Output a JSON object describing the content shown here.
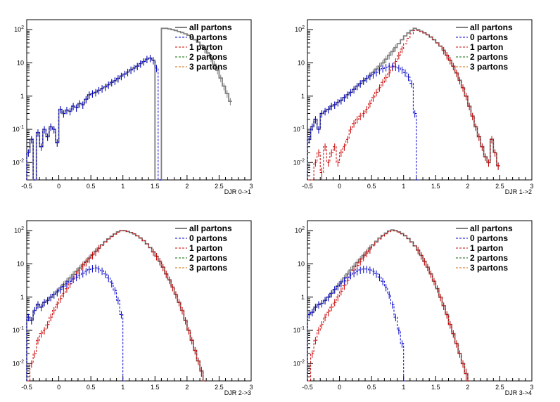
{
  "chart_data": [
    {
      "type": "histogram",
      "xlabel": "DJR 0->1",
      "xlim": [
        -0.5,
        3.0
      ],
      "ylim": [
        0.003,
        200
      ],
      "yscale": "log",
      "xticks": [
        "-0.5",
        "0",
        "0.5",
        "1",
        "1.5",
        "2",
        "2.5",
        "3"
      ],
      "yticks": [
        {
          "value": 0.01,
          "base": "10",
          "exp": "-2"
        },
        {
          "value": 0.1,
          "base": "10",
          "exp": "-1"
        },
        {
          "value": 1,
          "base": "1",
          "exp": ""
        },
        {
          "value": 10,
          "base": "10",
          "exp": ""
        },
        {
          "value": 100,
          "base": "10",
          "exp": "2"
        }
      ],
      "legend_position": "top-right",
      "legend": [
        "all partons",
        "0 partons",
        "1 parton",
        "2 partons",
        "3 partons"
      ],
      "series_colors": {
        "all": "#808080",
        "0": "#0000cc",
        "1": "#cc0000",
        "2": "#006600",
        "3": "#cc6600"
      },
      "bin_width": 0.05,
      "x_start": -0.5,
      "series": [
        {
          "name": "all partons",
          "values": [
            0.02,
            0.05,
            0.003,
            0.08,
            0.03,
            0.1,
            0.06,
            0.12,
            0.1,
            0.04,
            0.4,
            0.3,
            0.38,
            0.35,
            0.5,
            0.45,
            0.6,
            0.55,
            0.8,
            1.1,
            1.2,
            1.3,
            1.5,
            1.7,
            1.9,
            2.2,
            2.6,
            2.9,
            3.4,
            4,
            4.6,
            5.3,
            6.2,
            7,
            8,
            9.5,
            11,
            13,
            14,
            12,
            0.003,
            0.003,
            110,
            110,
            105,
            100,
            95,
            88,
            82,
            75,
            68,
            60,
            50,
            42,
            34,
            26,
            20,
            14,
            9,
            6,
            3.5,
            2,
            1.2,
            0.7
          ]
        },
        {
          "name": "0 partons",
          "values": [
            0.02,
            0.05,
            0.003,
            0.08,
            0.03,
            0.1,
            0.06,
            0.12,
            0.1,
            0.04,
            0.4,
            0.3,
            0.38,
            0.35,
            0.5,
            0.45,
            0.6,
            0.55,
            0.8,
            1.1,
            1.2,
            1.3,
            1.5,
            1.7,
            1.9,
            2.2,
            2.6,
            2.9,
            3.4,
            4,
            4.6,
            5.3,
            6.2,
            7,
            8,
            9.5,
            11,
            13,
            14,
            12,
            7,
            0.003
          ]
        },
        {
          "name": "1 parton",
          "values": []
        },
        {
          "name": "2 partons",
          "values": []
        },
        {
          "name": "3 partons",
          "values": []
        }
      ]
    },
    {
      "type": "histogram",
      "xlabel": "DJR 1->2",
      "xlim": [
        -0.5,
        3.0
      ],
      "ylim": [
        0.003,
        200
      ],
      "yscale": "log",
      "xticks": [
        "-0.5",
        "0",
        "0.5",
        "1",
        "1.5",
        "2",
        "2.5",
        "3"
      ],
      "yticks": [
        {
          "value": 0.01,
          "base": "10",
          "exp": "-2"
        },
        {
          "value": 0.1,
          "base": "10",
          "exp": "-1"
        },
        {
          "value": 1,
          "base": "1",
          "exp": ""
        },
        {
          "value": 10,
          "base": "10",
          "exp": ""
        },
        {
          "value": 100,
          "base": "10",
          "exp": "2"
        }
      ],
      "legend_position": "top-right",
      "legend": [
        "all partons",
        "0 partons",
        "1 parton",
        "2 partons",
        "3 partons"
      ],
      "series_colors": {
        "all": "#808080",
        "0": "#0000cc",
        "1": "#cc0000",
        "2": "#006600",
        "3": "#cc6600"
      },
      "bin_width": 0.05,
      "x_start": -0.5,
      "series": [
        {
          "name": "all partons",
          "values": [
            0.05,
            0.12,
            0.2,
            0.1,
            0.3,
            0.35,
            0.4,
            0.5,
            0.55,
            0.65,
            0.75,
            0.9,
            1.1,
            1.3,
            1.6,
            2,
            2.4,
            2.9,
            3.4,
            4.2,
            5.2,
            6.5,
            8,
            10,
            13,
            17,
            22,
            29,
            38,
            50,
            65,
            80,
            95,
            110,
            100,
            90,
            80,
            70,
            60,
            50,
            40,
            32,
            24,
            17,
            12,
            8,
            5,
            3,
            1.8,
            1,
            0.5,
            0.25,
            0.12,
            0.06,
            0.03,
            0.015,
            0.01,
            0.05,
            0.02,
            0.008
          ]
        },
        {
          "name": "0 partons",
          "values": [
            0.05,
            0.12,
            0.2,
            0.1,
            0.3,
            0.35,
            0.4,
            0.5,
            0.55,
            0.65,
            0.75,
            0.9,
            1.1,
            1.3,
            1.6,
            2,
            2.4,
            2.9,
            3.4,
            4,
            4.5,
            5.2,
            6,
            6.8,
            7.4,
            8,
            8,
            7.6,
            7,
            6.2,
            5.1,
            3.8,
            2.4,
            0.3,
            0.003
          ]
        },
        {
          "name": "1 parton",
          "values": [
            0.003,
            0.003,
            0.01,
            0.02,
            0.005,
            0.03,
            0.01,
            0.02,
            0.03,
            0.01,
            0.02,
            0.03,
            0.05,
            0.1,
            0.15,
            0.2,
            0.25,
            0.3,
            0.4,
            0.6,
            0.9,
            1.3,
            1.8,
            2.6,
            3.6,
            5,
            7.5,
            11,
            17,
            26,
            38,
            55,
            75,
            95,
            95,
            88,
            80,
            70,
            60,
            50,
            40,
            32,
            24,
            17,
            12,
            8,
            5,
            3,
            1.8,
            1,
            0.5,
            0.25,
            0.12,
            0.06,
            0.03,
            0.015,
            0.01,
            0.05,
            0.02,
            0.008
          ]
        },
        {
          "name": "2 partons",
          "values": []
        },
        {
          "name": "3 partons",
          "values": []
        }
      ]
    },
    {
      "type": "histogram",
      "xlabel": "DJR 2->3",
      "xlim": [
        -0.5,
        3.0
      ],
      "ylim": [
        0.003,
        200
      ],
      "yscale": "log",
      "xticks": [
        "-0.5",
        "0",
        "0.5",
        "1",
        "1.5",
        "2",
        "2.5",
        "3"
      ],
      "yticks": [
        {
          "value": 0.01,
          "base": "10",
          "exp": "-2"
        },
        {
          "value": 0.1,
          "base": "10",
          "exp": "-1"
        },
        {
          "value": 1,
          "base": "1",
          "exp": ""
        },
        {
          "value": 10,
          "base": "10",
          "exp": ""
        },
        {
          "value": 100,
          "base": "10",
          "exp": "2"
        }
      ],
      "legend_position": "top-right",
      "legend": [
        "all partons",
        "0 partons",
        "1 parton",
        "2 partons",
        "3 partons"
      ],
      "series_colors": {
        "all": "#808080",
        "0": "#0000cc",
        "1": "#cc0000",
        "2": "#006600",
        "3": "#cc6600"
      },
      "bin_width": 0.05,
      "x_start": -0.5,
      "series": [
        {
          "name": "all partons",
          "values": [
            0.25,
            0.2,
            0.4,
            0.6,
            0.5,
            0.7,
            0.8,
            1,
            1.2,
            1.5,
            1.9,
            2.4,
            3,
            3.8,
            4.8,
            6,
            7.5,
            9.5,
            12,
            15,
            19,
            24,
            30,
            38,
            47,
            57,
            68,
            80,
            92,
            100,
            100,
            95,
            88,
            80,
            70,
            60,
            50,
            40,
            31,
            23,
            17,
            12,
            8,
            5,
            3.3,
            2,
            1.2,
            0.7,
            0.4,
            0.2,
            0.1,
            0.05,
            0.025,
            0.012,
            0.006,
            0.003
          ]
        },
        {
          "name": "0 partons",
          "values": [
            0.25,
            0.2,
            0.4,
            0.6,
            0.5,
            0.7,
            0.8,
            1,
            1.2,
            1.4,
            1.7,
            2.1,
            2.5,
            3,
            3.5,
            4,
            4.6,
            5.2,
            6,
            6.8,
            7.4,
            7.6,
            7,
            6.2,
            5,
            3.8,
            2.6,
            1.6,
            0.8,
            0.3,
            0.003
          ]
        },
        {
          "name": "1 parton",
          "values": [
            0.003,
            0.01,
            0.02,
            0.05,
            0.08,
            0.1,
            0.15,
            0.25,
            0.4,
            0.6,
            0.9,
            1.3,
            1.8,
            2.5,
            3.5,
            4.8,
            6.5,
            8.5,
            11,
            14,
            18,
            23,
            29,
            36,
            45,
            55,
            66,
            78,
            90,
            100,
            100,
            95,
            88,
            80,
            70,
            60,
            50,
            40,
            31,
            23,
            17,
            12,
            8,
            5,
            3.3,
            2,
            1.2,
            0.7,
            0.4,
            0.2,
            0.1,
            0.05,
            0.025,
            0.012,
            0.006,
            0.003
          ]
        },
        {
          "name": "2 partons",
          "values": []
        },
        {
          "name": "3 partons",
          "values": []
        }
      ]
    },
    {
      "type": "histogram",
      "xlabel": "DJR 3->4",
      "xlim": [
        -0.5,
        3.0
      ],
      "ylim": [
        0.003,
        200
      ],
      "yscale": "log",
      "xticks": [
        "-0.5",
        "0",
        "0.5",
        "1",
        "1.5",
        "2",
        "2.5",
        "3"
      ],
      "yticks": [
        {
          "value": 0.01,
          "base": "10",
          "exp": "-2"
        },
        {
          "value": 0.1,
          "base": "10",
          "exp": "-1"
        },
        {
          "value": 1,
          "base": "1",
          "exp": ""
        },
        {
          "value": 10,
          "base": "10",
          "exp": ""
        },
        {
          "value": 100,
          "base": "10",
          "exp": "2"
        }
      ],
      "legend_position": "top-right",
      "legend": [
        "all partons",
        "0 partons",
        "1 parton",
        "2 partons",
        "3 partons"
      ],
      "series_colors": {
        "all": "#808080",
        "0": "#0000cc",
        "1": "#cc0000",
        "2": "#006600",
        "3": "#cc6600"
      },
      "bin_width": 0.05,
      "x_start": -0.5,
      "series": [
        {
          "name": "all partons",
          "values": [
            0.3,
            0.35,
            0.5,
            0.6,
            0.65,
            0.8,
            1,
            1.3,
            1.7,
            2.2,
            2.9,
            3.8,
            5,
            6.5,
            8.5,
            11,
            14,
            18,
            23,
            30,
            38,
            48,
            60,
            72,
            85,
            98,
            105,
            100,
            92,
            82,
            70,
            58,
            46,
            35,
            26,
            18,
            12,
            8,
            5,
            3,
            1.8,
            1,
            0.55,
            0.3,
            0.15,
            0.08,
            0.04,
            0.02,
            0.01,
            0.005,
            0.003
          ]
        },
        {
          "name": "0 partons",
          "values": [
            0.3,
            0.35,
            0.5,
            0.6,
            0.65,
            0.8,
            1,
            1.3,
            1.7,
            2.1,
            2.6,
            3.2,
            3.9,
            4.6,
            5.3,
            6,
            6.6,
            7,
            7,
            6.6,
            6,
            5.1,
            4,
            3,
            2,
            1.2,
            0.6,
            0.25,
            0.1,
            0.04,
            0.003
          ]
        },
        {
          "name": "1 parton",
          "values": [
            0.003,
            0.02,
            0.05,
            0.1,
            0.15,
            0.25,
            0.35,
            0.5,
            0.7,
            1,
            1.5,
            2.2,
            3.2,
            4.6,
            6.5,
            9,
            12,
            16,
            21,
            27,
            35,
            45,
            56,
            68,
            80,
            93,
            100,
            98,
            90,
            80,
            70,
            58,
            46,
            35,
            26,
            18,
            12,
            8,
            5,
            3,
            1.8,
            1,
            0.55,
            0.3,
            0.15,
            0.08,
            0.04,
            0.02,
            0.01,
            0.005,
            0.003
          ]
        },
        {
          "name": "2 partons",
          "values": []
        },
        {
          "name": "3 partons",
          "values": []
        }
      ]
    }
  ]
}
